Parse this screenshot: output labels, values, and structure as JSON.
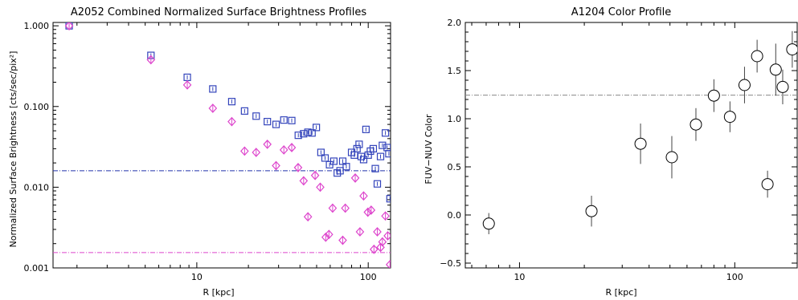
{
  "chart_data": [
    {
      "type": "scatter",
      "title": "A2052 Combined Normalized Surface Brightness Profiles",
      "xlabel": "R [kpc]",
      "ylabel": "Normalized Surface Brightness [cts/sec/pix²]",
      "xscale": "log",
      "yscale": "log",
      "xlim": [
        1.45,
        135
      ],
      "ylim": [
        0.001,
        1.1
      ],
      "xtick_labels": [
        {
          "value": 10,
          "label": "10"
        },
        {
          "value": 100,
          "label": "100"
        }
      ],
      "ytick_labels": [
        {
          "value": 0.001,
          "label": "0.001"
        },
        {
          "value": 0.01,
          "label": "0.010"
        },
        {
          "value": 0.1,
          "label": "0.100"
        },
        {
          "value": 1,
          "label": "1.000"
        }
      ],
      "grid": false,
      "series": [
        {
          "marker": "square",
          "color": "#3344bb",
          "points": [
            [
              1.8,
              1.0
            ],
            [
              5.4,
              0.43
            ],
            [
              8.8,
              0.23
            ],
            [
              12.4,
              0.165
            ],
            [
              16.0,
              0.115
            ],
            [
              19.0,
              0.088
            ],
            [
              22.2,
              0.076
            ],
            [
              25.8,
              0.065
            ],
            [
              29.0,
              0.06
            ],
            [
              32.2,
              0.068
            ],
            [
              35.8,
              0.067
            ],
            [
              39.1,
              0.044
            ],
            [
              42.0,
              0.046
            ],
            [
              44.5,
              0.048
            ],
            [
              47.0,
              0.047
            ],
            [
              49.8,
              0.055
            ],
            [
              53.0,
              0.027
            ],
            [
              56.0,
              0.023
            ],
            [
              59.5,
              0.019
            ],
            [
              63.0,
              0.021
            ],
            [
              66.0,
              0.015
            ],
            [
              68.5,
              0.016
            ],
            [
              71.0,
              0.021
            ],
            [
              74.5,
              0.018
            ],
            [
              80.0,
              0.027
            ],
            [
              83.0,
              0.025
            ],
            [
              86.0,
              0.03
            ],
            [
              88.5,
              0.034
            ],
            [
              91.0,
              0.024
            ],
            [
              94.0,
              0.022
            ],
            [
              97.0,
              0.052
            ],
            [
              100.0,
              0.025
            ],
            [
              103.0,
              0.028
            ],
            [
              107.0,
              0.03
            ],
            [
              110.0,
              0.017
            ],
            [
              113.0,
              0.011
            ],
            [
              118.0,
              0.024
            ],
            [
              121.0,
              0.033
            ],
            [
              126.0,
              0.047
            ],
            [
              129.0,
              0.031
            ],
            [
              132.0,
              0.026
            ],
            [
              134.0,
              0.0072
            ]
          ]
        },
        {
          "marker": "diamond",
          "color": "#dd44cc",
          "points": [
            [
              1.8,
              1.0
            ],
            [
              5.4,
              0.38
            ],
            [
              8.8,
              0.185
            ],
            [
              12.4,
              0.095
            ],
            [
              16.0,
              0.065
            ],
            [
              19.0,
              0.028
            ],
            [
              22.2,
              0.027
            ],
            [
              25.8,
              0.034
            ],
            [
              29.0,
              0.0185
            ],
            [
              32.2,
              0.029
            ],
            [
              35.8,
              0.031
            ],
            [
              39.0,
              0.0175
            ],
            [
              42.0,
              0.012
            ],
            [
              44.5,
              0.0043
            ],
            [
              49.0,
              0.014
            ],
            [
              52.5,
              0.01
            ],
            [
              56.5,
              0.0024
            ],
            [
              59.0,
              0.0026
            ],
            [
              62.0,
              0.0055
            ],
            [
              71.0,
              0.0022
            ],
            [
              73.5,
              0.0055
            ],
            [
              84.0,
              0.013
            ],
            [
              89.5,
              0.0028
            ],
            [
              94.0,
              0.0078
            ],
            [
              99.5,
              0.0049
            ],
            [
              104.0,
              0.0052
            ],
            [
              108.0,
              0.0017
            ],
            [
              113.0,
              0.0028
            ],
            [
              118.0,
              0.0018
            ],
            [
              121.0,
              0.0021
            ],
            [
              126.0,
              0.0044
            ],
            [
              130.0,
              0.0025
            ],
            [
              134.0,
              0.0011
            ]
          ]
        }
      ],
      "reference_lines": [
        {
          "y": 0.016,
          "color": "#2233aa",
          "style": "dash-dot"
        },
        {
          "y": 0.00155,
          "color": "#dd44cc",
          "style": "dash-dot"
        }
      ]
    },
    {
      "type": "scatter",
      "title": "A1204 Color Profile",
      "xlabel": "R [kpc]",
      "ylabel": "FUV−NUV Color",
      "xscale": "log",
      "yscale": "linear",
      "xlim": [
        5.6,
        195
      ],
      "ylim": [
        -0.55,
        2.0
      ],
      "xtick_labels": [
        {
          "value": 10,
          "label": "10"
        },
        {
          "value": 100,
          "label": "100"
        }
      ],
      "ytick_labels": [
        {
          "value": -0.5,
          "label": "−0.5"
        },
        {
          "value": 0.0,
          "label": "0.0"
        },
        {
          "value": 0.5,
          "label": "0.5"
        },
        {
          "value": 1.0,
          "label": "1.0"
        },
        {
          "value": 1.5,
          "label": "1.5"
        },
        {
          "value": 2.0,
          "label": "2.0"
        }
      ],
      "grid": false,
      "series": [
        {
          "marker": "circle",
          "color": "#000000",
          "points": [
            {
              "x": 7.2,
              "y": -0.09,
              "err": 0.11
            },
            {
              "x": 21.6,
              "y": 0.04,
              "err": 0.16
            },
            {
              "x": 36.5,
              "y": 0.74,
              "err": 0.21
            },
            {
              "x": 51.0,
              "y": 0.6,
              "err": 0.22
            },
            {
              "x": 66.0,
              "y": 0.94,
              "err": 0.17
            },
            {
              "x": 80.0,
              "y": 1.24,
              "err": 0.17
            },
            {
              "x": 95.0,
              "y": 1.02,
              "err": 0.16
            },
            {
              "x": 111.0,
              "y": 1.35,
              "err": 0.19
            },
            {
              "x": 127.0,
              "y": 1.65,
              "err": 0.17
            },
            {
              "x": 142.0,
              "y": 0.32,
              "err": 0.14
            },
            {
              "x": 155.0,
              "y": 1.51,
              "err": 0.27
            },
            {
              "x": 167.0,
              "y": 1.33,
              "err": 0.18
            },
            {
              "x": 185.0,
              "y": 1.72,
              "err": 0.19
            }
          ]
        }
      ],
      "reference_lines": [
        {
          "y": 1.245,
          "color": "#888888",
          "style": "dash-dot"
        }
      ]
    }
  ]
}
